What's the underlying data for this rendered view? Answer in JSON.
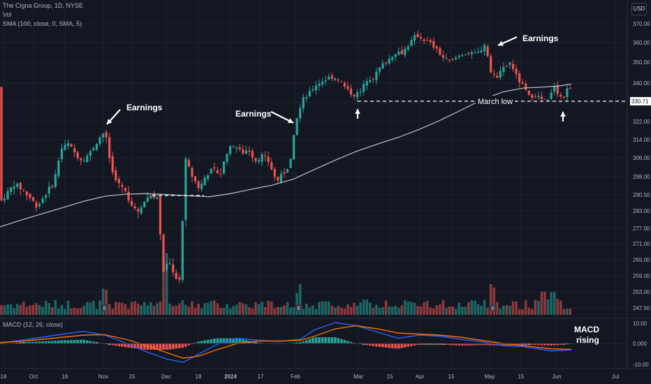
{
  "header": {
    "title": "The Cigna Group, 1D, NYSE",
    "vol_label": "Vol",
    "sma_label": "SMA (100, close, 0, SMA, 5)",
    "macd_label": "MACD (12, 26, close)",
    "currency_button": "USD"
  },
  "colors": {
    "background": "#131722",
    "up": "#26a69a",
    "down": "#ef5350",
    "sma": "#b2b5be",
    "macd": "#2962ff",
    "signal": "#ff6d00",
    "grid": "#1f2330",
    "price_marker": "#ffffff"
  },
  "chart_data": [
    {
      "type": "candlestick",
      "y_ticks": [
        370.0,
        360.0,
        350.0,
        340.0,
        330.0,
        322.0,
        314.0,
        306.0,
        298.0,
        290.5,
        283.0,
        277.0,
        271.0,
        265.0,
        259.0,
        253.0,
        247.5
      ],
      "y_tick_labels": [
        "370.00",
        "360.00",
        "350.00",
        "340.00",
        "330.00",
        "322.00",
        "314.00",
        "306.00",
        "298.00",
        "290.50",
        "283.00",
        "277.00",
        "271.00",
        "265.00",
        "259.00",
        "253.00",
        "247.50"
      ],
      "x_labels": [
        "18",
        "Oct",
        "16",
        "Nov",
        "15",
        "Dec",
        "18",
        "2024",
        "17",
        "Feb",
        "Mar",
        "15",
        "Apr",
        "15",
        "May",
        "15",
        "Jun",
        "Jul"
      ],
      "last_price_label": "330.71",
      "last_price": 330.71,
      "annotations": [
        "Earnings",
        "Earnings",
        "Earnings",
        "March low",
        "MACD\nrising"
      ],
      "sma_series": [
        [
          0,
          277.5
        ],
        [
          30,
          279.8
        ],
        [
          60,
          282.0
        ],
        [
          90,
          284.5
        ],
        [
          120,
          287.5
        ],
        [
          150,
          289.8
        ],
        [
          180,
          290.8
        ],
        [
          210,
          291.0
        ],
        [
          240,
          290.6
        ],
        [
          270,
          290.0
        ],
        [
          300,
          289.6
        ],
        [
          330,
          291.0
        ],
        [
          360,
          292.8
        ],
        [
          390,
          294.5
        ],
        [
          420,
          297.0
        ],
        [
          450,
          301.0
        ],
        [
          480,
          305.0
        ],
        [
          510,
          308.8
        ],
        [
          540,
          312.0
        ],
        [
          570,
          315.0
        ],
        [
          600,
          318.5
        ],
        [
          630,
          322.5
        ],
        [
          660,
          326.8
        ],
        [
          690,
          331.5
        ],
        [
          720,
          335.5
        ],
        [
          750,
          337.5
        ],
        [
          780,
          338.0
        ],
        [
          800,
          338.5
        ],
        [
          818,
          339.5
        ]
      ]
    },
    {
      "type": "volume",
      "series": "volume bars under price pane"
    },
    {
      "type": "line",
      "y_ticks": [
        10.0,
        0.0,
        -10.0
      ],
      "y_tick_labels": [
        "10.00",
        "0.000",
        "-10.00"
      ],
      "series": [
        {
          "values": [
            [
              0,
              0.2
            ],
            [
              30,
              1.5
            ],
            [
              60,
              3.0
            ],
            [
              90,
              4.5
            ],
            [
              120,
              5.8
            ],
            [
              150,
              4.0
            ],
            [
              180,
              0.2
            ],
            [
              210,
              -4.0
            ],
            [
              240,
              -7.5
            ],
            [
              262,
              -9.0
            ],
            [
              285,
              -5.0
            ],
            [
              310,
              -0.5
            ],
            [
              340,
              2.5
            ],
            [
              370,
              1.5
            ],
            [
              400,
              1.0
            ],
            [
              430,
              2.0
            ],
            [
              450,
              6.5
            ],
            [
              480,
              10.0
            ],
            [
              510,
              8.5
            ],
            [
              540,
              5.5
            ],
            [
              570,
              2.5
            ],
            [
              600,
              4.0
            ],
            [
              630,
              3.5
            ],
            [
              660,
              2.0
            ],
            [
              690,
              0.8
            ],
            [
              720,
              -1.0
            ],
            [
              750,
              -1.5
            ],
            [
              770,
              -2.5
            ],
            [
              790,
              -3.5
            ],
            [
              818,
              -3.0
            ]
          ]
        },
        {
          "values": [
            [
              0,
              0.5
            ],
            [
              30,
              1.0
            ],
            [
              60,
              2.0
            ],
            [
              90,
              3.0
            ],
            [
              120,
              4.0
            ],
            [
              150,
              4.2
            ],
            [
              180,
              2.0
            ],
            [
              210,
              -1.0
            ],
            [
              240,
              -4.5
            ],
            [
              262,
              -7.0
            ],
            [
              285,
              -6.0
            ],
            [
              310,
              -3.0
            ],
            [
              340,
              0.0
            ],
            [
              370,
              1.2
            ],
            [
              400,
              1.2
            ],
            [
              430,
              1.5
            ],
            [
              450,
              3.5
            ],
            [
              480,
              7.0
            ],
            [
              510,
              8.5
            ],
            [
              540,
              7.0
            ],
            [
              570,
              5.0
            ],
            [
              600,
              4.5
            ],
            [
              630,
              4.0
            ],
            [
              660,
              3.0
            ],
            [
              690,
              1.5
            ],
            [
              720,
              0.0
            ],
            [
              750,
              -1.0
            ],
            [
              770,
              -1.8
            ],
            [
              790,
              -2.5
            ],
            [
              818,
              -2.8
            ]
          ]
        }
      ]
    }
  ]
}
